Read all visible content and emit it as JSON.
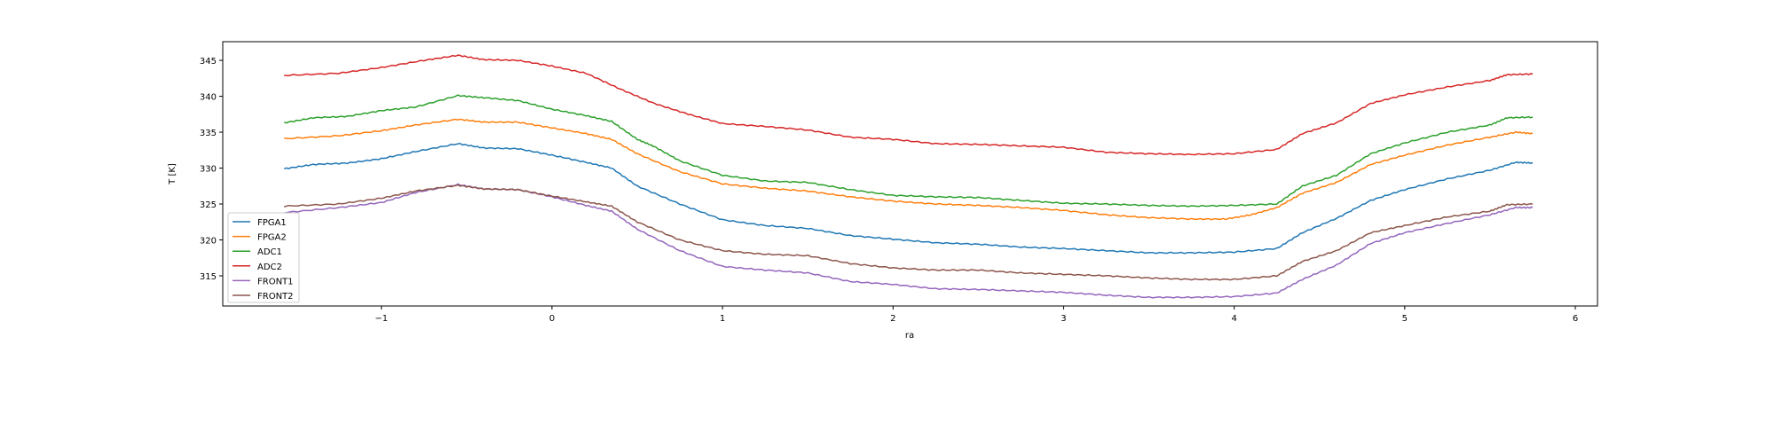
{
  "chart_data": {
    "type": "line",
    "title": "",
    "xlabel": "ra",
    "ylabel": "T [K]",
    "xlim": [
      -1.93,
      6.13
    ],
    "ylim": [
      310.8,
      347.6
    ],
    "xticks": [
      -1,
      0,
      1,
      2,
      3,
      4,
      5,
      6
    ],
    "yticks": [
      315,
      320,
      325,
      330,
      335,
      340,
      345
    ],
    "grid": false,
    "legend": "lower-left",
    "series": [
      {
        "name": "FPGA1",
        "color": "#1f77b4",
        "points": [
          [
            -1.57,
            329.9
          ],
          [
            -1.4,
            330.5
          ],
          [
            -1.2,
            330.7
          ],
          [
            -1,
            331.3
          ],
          [
            -0.8,
            332.3
          ],
          [
            -0.55,
            333.4
          ],
          [
            -0.4,
            332.8
          ],
          [
            -0.2,
            332.7
          ],
          [
            0,
            331.8
          ],
          [
            0.2,
            330.8
          ],
          [
            0.35,
            330
          ],
          [
            0.5,
            327.5
          ],
          [
            0.75,
            325
          ],
          [
            1,
            322.8
          ],
          [
            1.25,
            322
          ],
          [
            1.5,
            321.6
          ],
          [
            1.75,
            320.6
          ],
          [
            2,
            320.1
          ],
          [
            2.25,
            319.6
          ],
          [
            2.5,
            319.4
          ],
          [
            2.75,
            319
          ],
          [
            3,
            318.8
          ],
          [
            3.25,
            318.5
          ],
          [
            3.5,
            318.2
          ],
          [
            3.75,
            318.2
          ],
          [
            4,
            318.3
          ],
          [
            4.25,
            318.8
          ],
          [
            4.4,
            321
          ],
          [
            4.6,
            323
          ],
          [
            4.8,
            325.5
          ],
          [
            5,
            327
          ],
          [
            5.25,
            328.5
          ],
          [
            5.5,
            329.7
          ],
          [
            5.65,
            330.8
          ],
          [
            5.75,
            330.7
          ]
        ]
      },
      {
        "name": "FPGA2",
        "color": "#ff7f0e",
        "points": [
          [
            -1.57,
            334.1
          ],
          [
            -1.25,
            334.5
          ],
          [
            -1,
            335.2
          ],
          [
            -0.8,
            336
          ],
          [
            -0.55,
            336.8
          ],
          [
            -0.4,
            336.4
          ],
          [
            -0.2,
            336.4
          ],
          [
            0,
            335.6
          ],
          [
            0.2,
            334.8
          ],
          [
            0.35,
            334
          ],
          [
            0.5,
            332
          ],
          [
            0.75,
            329.5
          ],
          [
            1,
            327.8
          ],
          [
            1.25,
            327.2
          ],
          [
            1.5,
            326.8
          ],
          [
            1.75,
            326
          ],
          [
            2,
            325.4
          ],
          [
            2.25,
            325
          ],
          [
            2.5,
            324.8
          ],
          [
            2.75,
            324.5
          ],
          [
            3,
            324.1
          ],
          [
            3.25,
            323.5
          ],
          [
            3.5,
            323.1
          ],
          [
            3.75,
            322.9
          ],
          [
            3.95,
            322.9
          ],
          [
            4.1,
            323.5
          ],
          [
            4.25,
            324.5
          ],
          [
            4.4,
            326.5
          ],
          [
            4.6,
            328
          ],
          [
            4.8,
            330.5
          ],
          [
            5,
            331.8
          ],
          [
            5.25,
            333.2
          ],
          [
            5.5,
            334.3
          ],
          [
            5.65,
            335
          ],
          [
            5.75,
            334.8
          ]
        ]
      },
      {
        "name": "ADC1",
        "color": "#2ca02c",
        "points": [
          [
            -1.57,
            336.3
          ],
          [
            -1.4,
            337
          ],
          [
            -1.2,
            337.2
          ],
          [
            -1,
            338
          ],
          [
            -0.8,
            338.5
          ],
          [
            -0.55,
            340.1
          ],
          [
            -0.4,
            339.8
          ],
          [
            -0.2,
            339.4
          ],
          [
            0,
            338.2
          ],
          [
            0.2,
            337.3
          ],
          [
            0.35,
            336.5
          ],
          [
            0.5,
            334
          ],
          [
            0.6,
            333
          ],
          [
            0.75,
            331
          ],
          [
            1,
            329
          ],
          [
            1.25,
            328.2
          ],
          [
            1.5,
            328
          ],
          [
            1.75,
            327
          ],
          [
            2,
            326.2
          ],
          [
            2.25,
            326
          ],
          [
            2.5,
            325.9
          ],
          [
            2.75,
            325.5
          ],
          [
            3,
            325.1
          ],
          [
            3.25,
            325
          ],
          [
            3.5,
            324.8
          ],
          [
            3.75,
            324.7
          ],
          [
            4,
            324.8
          ],
          [
            4.25,
            325
          ],
          [
            4.4,
            327.5
          ],
          [
            4.6,
            329
          ],
          [
            4.8,
            332
          ],
          [
            5,
            333.5
          ],
          [
            5.25,
            335
          ],
          [
            5.5,
            336
          ],
          [
            5.6,
            337
          ],
          [
            5.75,
            337.1
          ]
        ]
      },
      {
        "name": "ADC2",
        "color": "#d62728",
        "points": [
          [
            -1.57,
            342.9
          ],
          [
            -1.25,
            343.2
          ],
          [
            -1,
            344
          ],
          [
            -0.75,
            345
          ],
          [
            -0.55,
            345.7
          ],
          [
            -0.4,
            345.1
          ],
          [
            -0.2,
            345
          ],
          [
            0,
            344.2
          ],
          [
            0.2,
            343.2
          ],
          [
            0.4,
            341
          ],
          [
            0.6,
            339
          ],
          [
            0.8,
            337.5
          ],
          [
            1,
            336.2
          ],
          [
            1.25,
            335.8
          ],
          [
            1.5,
            335.3
          ],
          [
            1.75,
            334.3
          ],
          [
            2,
            334
          ],
          [
            2.25,
            333.4
          ],
          [
            2.5,
            333.3
          ],
          [
            2.75,
            333.1
          ],
          [
            3,
            332.9
          ],
          [
            3.25,
            332.2
          ],
          [
            3.5,
            332
          ],
          [
            3.75,
            331.9
          ],
          [
            4,
            332
          ],
          [
            4.25,
            332.6
          ],
          [
            4.4,
            334.8
          ],
          [
            4.6,
            336.3
          ],
          [
            4.8,
            339
          ],
          [
            5,
            340.2
          ],
          [
            5.25,
            341.3
          ],
          [
            5.5,
            342.2
          ],
          [
            5.6,
            343
          ],
          [
            5.75,
            343.1
          ]
        ]
      },
      {
        "name": "FRONT1",
        "color": "#9467bd",
        "points": [
          [
            -1.57,
            323.8
          ],
          [
            -1.25,
            324.5
          ],
          [
            -1,
            325.2
          ],
          [
            -0.8,
            326.6
          ],
          [
            -0.55,
            327.7
          ],
          [
            -0.4,
            327.1
          ],
          [
            -0.2,
            327
          ],
          [
            0,
            326
          ],
          [
            0.2,
            324.8
          ],
          [
            0.35,
            324
          ],
          [
            0.5,
            321.5
          ],
          [
            0.75,
            318.5
          ],
          [
            1,
            316.3
          ],
          [
            1.25,
            315.8
          ],
          [
            1.5,
            315.4
          ],
          [
            1.75,
            314.2
          ],
          [
            2,
            313.8
          ],
          [
            2.25,
            313.2
          ],
          [
            2.5,
            313.1
          ],
          [
            2.75,
            312.9
          ],
          [
            3,
            312.7
          ],
          [
            3.25,
            312.3
          ],
          [
            3.5,
            312
          ],
          [
            3.75,
            312
          ],
          [
            4,
            312.1
          ],
          [
            4.25,
            312.6
          ],
          [
            4.4,
            314.5
          ],
          [
            4.6,
            316.5
          ],
          [
            4.8,
            319.5
          ],
          [
            5,
            321
          ],
          [
            5.25,
            322.3
          ],
          [
            5.5,
            323.5
          ],
          [
            5.65,
            324.5
          ],
          [
            5.75,
            324.5
          ]
        ]
      },
      {
        "name": "FRONT2",
        "color": "#8c564b",
        "points": [
          [
            -1.57,
            324.7
          ],
          [
            -1.25,
            325
          ],
          [
            -1,
            325.8
          ],
          [
            -0.8,
            326.8
          ],
          [
            -0.55,
            327.6
          ],
          [
            -0.4,
            327.1
          ],
          [
            -0.2,
            327
          ],
          [
            0,
            326.1
          ],
          [
            0.2,
            325.3
          ],
          [
            0.35,
            324.7
          ],
          [
            0.5,
            322.5
          ],
          [
            0.75,
            320
          ],
          [
            1,
            318.5
          ],
          [
            1.25,
            318
          ],
          [
            1.5,
            317.8
          ],
          [
            1.75,
            316.7
          ],
          [
            2,
            316.1
          ],
          [
            2.25,
            315.8
          ],
          [
            2.5,
            315.8
          ],
          [
            2.75,
            315.4
          ],
          [
            3,
            315.2
          ],
          [
            3.25,
            315
          ],
          [
            3.5,
            314.7
          ],
          [
            3.75,
            314.5
          ],
          [
            4,
            314.5
          ],
          [
            4.25,
            315
          ],
          [
            4.4,
            317
          ],
          [
            4.6,
            318.5
          ],
          [
            4.8,
            321
          ],
          [
            5,
            322
          ],
          [
            5.25,
            323.2
          ],
          [
            5.5,
            324
          ],
          [
            5.6,
            324.9
          ],
          [
            5.75,
            325
          ]
        ]
      }
    ]
  }
}
